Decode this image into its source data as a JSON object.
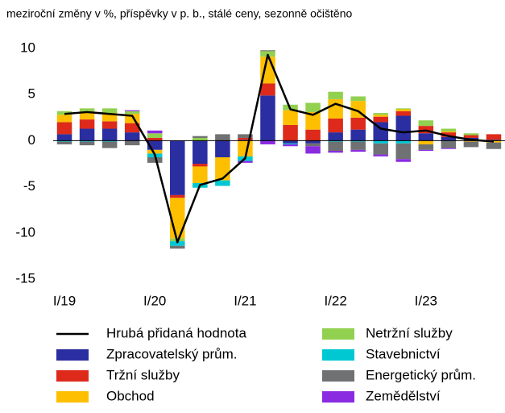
{
  "chart_data": {
    "type": "bar",
    "subtitle": "meziroční změny v %, příspěvky v p. b., stálé ceny, sezonně očištěno",
    "stacked": true,
    "categories": [
      "I/19",
      null,
      null,
      null,
      "I/20",
      null,
      null,
      null,
      "I/21",
      null,
      null,
      null,
      "I/22",
      null,
      null,
      null,
      "I/23",
      null,
      null,
      null
    ],
    "ylim": [
      -15,
      10
    ],
    "yticks": [
      -15,
      -10,
      -5,
      0,
      5,
      10
    ],
    "series": [
      {
        "name": "Zpracovatelský prům.",
        "color": "#2b2ea0",
        "values": [
          0.7,
          1.3,
          1.3,
          0.9,
          -1.0,
          -5.9,
          -2.5,
          -1.8,
          0.1,
          4.9,
          -0.3,
          -0.3,
          0.9,
          1.2,
          2.0,
          2.7,
          0.8,
          0.4,
          0.3,
          0.1
        ]
      },
      {
        "name": "Tržní služby",
        "color": "#dd2a1b",
        "values": [
          1.3,
          1.0,
          0.8,
          1.0,
          0.3,
          -0.3,
          -0.3,
          0.0,
          0.2,
          1.3,
          1.7,
          1.2,
          1.5,
          1.3,
          0.6,
          0.5,
          0.8,
          0.5,
          0.3,
          0.6
        ]
      },
      {
        "name": "Obchod",
        "color": "#fdbf00",
        "values": [
          0.8,
          0.8,
          0.9,
          1.0,
          -0.4,
          -4.4,
          -1.8,
          -2.5,
          -1.7,
          2.9,
          1.6,
          1.9,
          2.1,
          1.8,
          0.2,
          0.2,
          -0.4,
          0.1,
          -0.1,
          -0.2
        ]
      },
      {
        "name": "Netržní služby",
        "color": "#92d050",
        "values": [
          0.4,
          0.4,
          0.5,
          0.3,
          0.5,
          -0.3,
          0.3,
          0.0,
          0.0,
          0.6,
          0.6,
          1.0,
          0.8,
          0.5,
          0.2,
          0.1,
          0.6,
          0.3,
          0.2,
          0.0
        ]
      },
      {
        "name": "Stavebnictví",
        "color": "#00c8d2",
        "values": [
          -0.1,
          -0.1,
          -0.1,
          0.0,
          -0.4,
          -0.5,
          -0.5,
          -0.6,
          -0.5,
          0.0,
          -0.1,
          0.0,
          -0.1,
          -0.1,
          -0.3,
          -0.3,
          0.0,
          0.0,
          0.0,
          0.0
        ]
      },
      {
        "name": "Energetický prům.",
        "color": "#6f7172",
        "values": [
          -0.3,
          -0.4,
          -0.7,
          -0.5,
          -0.6,
          -0.3,
          0.2,
          0.7,
          0.4,
          0.1,
          0.0,
          -0.3,
          -1.0,
          -0.9,
          -1.2,
          -1.7,
          -0.6,
          -0.8,
          -0.6,
          -0.7
        ]
      },
      {
        "name": "Zemědělství",
        "color": "#8a2be2",
        "values": [
          0.0,
          0.0,
          0.0,
          0.1,
          0.3,
          0.0,
          0.0,
          0.0,
          -0.2,
          -0.4,
          -0.2,
          -0.8,
          -0.2,
          -0.2,
          -0.2,
          -0.3,
          -0.1,
          -0.1,
          0.0,
          0.0
        ]
      }
    ],
    "line": {
      "name": "Hrubá přidaná hodnota",
      "color": "#000000",
      "values": [
        2.9,
        3.1,
        2.9,
        2.7,
        -1.5,
        -11.0,
        -4.8,
        -4.1,
        -1.9,
        9.3,
        3.4,
        2.8,
        4.0,
        3.2,
        1.3,
        0.9,
        1.1,
        0.5,
        0.1,
        -0.1
      ]
    }
  }
}
